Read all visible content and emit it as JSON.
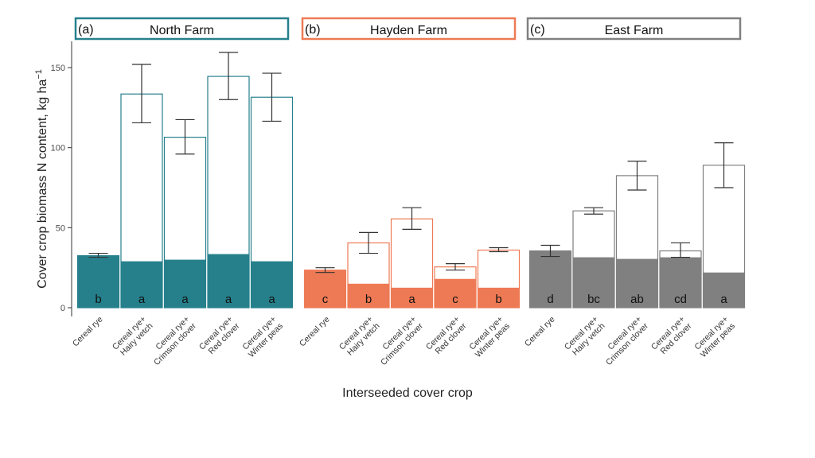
{
  "chart_data": {
    "type": "bar",
    "ylabel": "Cover crop biomass N content, kg ha",
    "ylabel_superscript": "−1",
    "xlabel": "Interseeded cover crop",
    "ylim": [
      0,
      165
    ],
    "yticks": [
      0,
      50,
      100,
      150
    ],
    "categories": [
      [
        "Cereal rye"
      ],
      [
        "Cereal rye+",
        "Hairy vetch"
      ],
      [
        "Cereal rye+",
        "Crimson clover"
      ],
      [
        "Cereal rye+",
        "Red clover"
      ],
      [
        "Cereal rye+",
        "Winter peas"
      ]
    ],
    "panels": [
      {
        "letter": "(a)",
        "title": "North Farm",
        "color": "#26808c",
        "total": [
          32.5,
          133.5,
          106.5,
          144.5,
          131.5
        ],
        "filled": [
          32.5,
          29,
          30,
          33.5,
          29
        ],
        "err_low": [
          31.5,
          115.5,
          96,
          130,
          116.5
        ],
        "err_high": [
          34,
          152,
          117.5,
          159.5,
          146.5
        ],
        "sig": [
          "b",
          "a",
          "a",
          "a",
          "a"
        ]
      },
      {
        "letter": "(b)",
        "title": "Hayden Farm",
        "color": "#ee7a55",
        "total": [
          23.5,
          40.5,
          55.5,
          25.5,
          36
        ],
        "filled": [
          23.5,
          15,
          12.5,
          18,
          12.5
        ],
        "err_low": [
          22,
          34,
          49,
          23.5,
          35
        ],
        "err_high": [
          25,
          47,
          62.5,
          27.5,
          37.5
        ],
        "sig": [
          "c",
          "b",
          "a",
          "c",
          "b"
        ]
      },
      {
        "letter": "(c)",
        "title": "East Farm",
        "color": "#808080",
        "total": [
          35.5,
          60.5,
          82.5,
          35.5,
          89
        ],
        "filled": [
          35.5,
          31.5,
          30.5,
          31.5,
          22
        ],
        "err_low": [
          32,
          58.5,
          73.5,
          31.5,
          75
        ],
        "err_high": [
          39,
          62.5,
          91.5,
          40.5,
          103
        ],
        "sig": [
          "d",
          "bc",
          "ab",
          "cd",
          "a"
        ]
      }
    ]
  }
}
